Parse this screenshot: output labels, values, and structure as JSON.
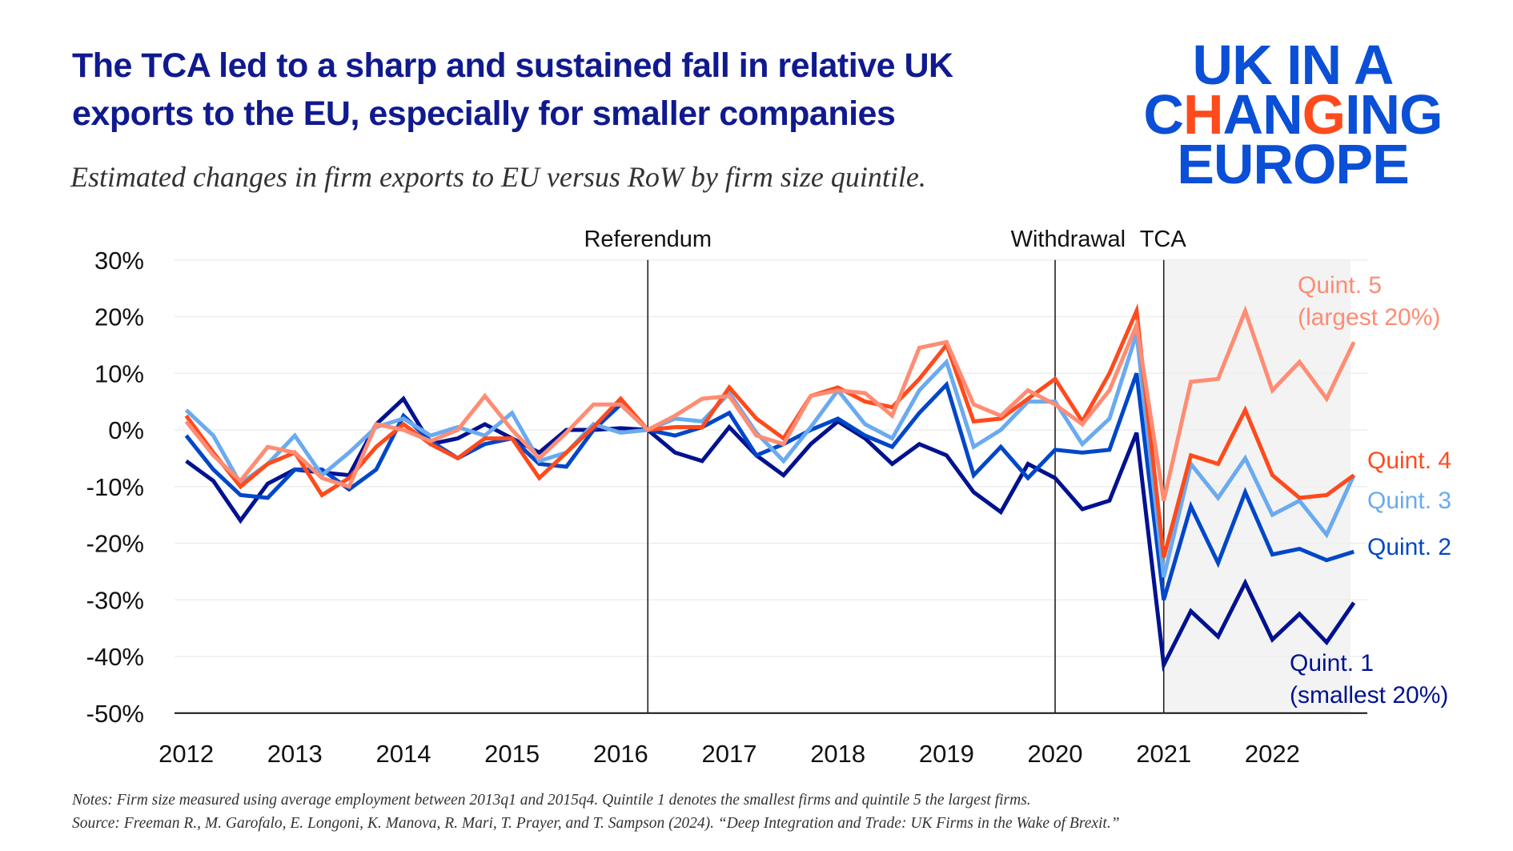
{
  "header": {
    "title_line1": "The TCA led to a sharp and sustained fall in relative UK",
    "title_line2": "exports to the EU, especially for smaller companies",
    "subtitle": "Estimated changes in firm exports to EU versus RoW by firm size quintile."
  },
  "logo": {
    "line1": "UK IN A",
    "line2": "CHANGING",
    "line3": "EUROPE",
    "brand_color": "#0a4fd6",
    "accent_color": "#ff4a1c"
  },
  "notes": {
    "line1": "Notes: Firm size measured using average employment between 2013q1 and 2015q4. Quintile 1 denotes the smallest firms and quintile 5 the largest firms.",
    "line2": "Source: Freeman R., M. Garofalo, E. Longoni, K. Manova, R. Mari, T. Prayer, and T. Sampson (2024). “Deep Integration and Trade: UK Firms in the Wake of Brexit.”"
  },
  "chart_data": {
    "type": "line",
    "x_start": "2012q1",
    "x_end": "2022q4",
    "frequency": "quarterly",
    "ylim": [
      -50,
      30
    ],
    "y_ticks": [
      30,
      20,
      10,
      0,
      -10,
      -20,
      -30,
      -40,
      -50
    ],
    "y_tick_labels": [
      "30%",
      "20%",
      "10%",
      "0%",
      "-10%",
      "-20%",
      "-30%",
      "-40%",
      "-50%"
    ],
    "x_tick_labels": [
      "2012",
      "2013",
      "2014",
      "2015",
      "2016",
      "2017",
      "2018",
      "2019",
      "2020",
      "2021",
      "2022"
    ],
    "grid": "horizontal",
    "events": [
      {
        "label": "Referendum",
        "x": "2016q2"
      },
      {
        "label": "Withdrawal",
        "x": "2020q1"
      },
      {
        "label": "TCA",
        "x": "2021q1"
      }
    ],
    "shaded_from": "2021q1",
    "series": [
      {
        "name": "Quint. 1",
        "sublabel": "(smallest 20%)",
        "color": "#00128f",
        "values": [
          -5.5,
          -9,
          -16,
          -9.5,
          -7,
          -7.5,
          -8,
          1,
          5.5,
          -2.5,
          -1.5,
          1,
          -1.5,
          -4,
          0,
          0,
          0.3,
          0,
          -4,
          -5.5,
          0.5,
          -4.5,
          -8,
          -2.5,
          1.5,
          -1.5,
          -6,
          -2.5,
          -4.5,
          -11,
          -14.5,
          -6,
          -8.5,
          -14,
          -12.5,
          -0.5,
          -41.5,
          -32,
          -36.5,
          -27,
          -37,
          -32.5,
          -37.5,
          -30.5
        ]
      },
      {
        "name": "Quint. 2",
        "sublabel": "",
        "color": "#0047c8",
        "values": [
          -1,
          -7,
          -11.5,
          -12,
          -7,
          -7,
          -10.5,
          -7,
          2.5,
          -2,
          -5,
          -2.5,
          -1.5,
          -6,
          -6.5,
          0,
          4.5,
          0,
          -1,
          0.5,
          3,
          -4.5,
          -2.5,
          0,
          2,
          -1,
          -3,
          3,
          8,
          -8,
          -3,
          -8.5,
          -3.5,
          -4,
          -3.5,
          10,
          -30,
          -13.5,
          -23.5,
          -11,
          -22,
          -21,
          -23,
          -21.5
        ]
      },
      {
        "name": "Quint. 3",
        "sublabel": "",
        "color": "#6aaaf0",
        "values": [
          3.5,
          -1,
          -9.5,
          -6,
          -1,
          -8,
          -4,
          0.5,
          2,
          -1,
          0.5,
          -1,
          3,
          -5.5,
          -4,
          1,
          -0.5,
          0,
          2,
          1.5,
          6.5,
          -0.5,
          -5.5,
          0.5,
          7,
          1,
          -1.5,
          7,
          12,
          -3,
          0,
          5,
          5,
          -2.5,
          2,
          17,
          -26,
          -6,
          -12,
          -5,
          -15,
          -12.5,
          -18.5,
          -8
        ]
      },
      {
        "name": "Quint. 4",
        "sublabel": "",
        "color": "#ff4a1c",
        "values": [
          2.5,
          -4,
          -10,
          -6,
          -4,
          -11.5,
          -8.5,
          -3,
          1,
          -2.5,
          -5,
          -1.5,
          -1.5,
          -8.5,
          -4,
          0.5,
          5.5,
          0,
          0.5,
          0.5,
          7.5,
          2,
          -1.5,
          6,
          7.5,
          5,
          4,
          9,
          15,
          1.5,
          2,
          5.5,
          9,
          1.5,
          10,
          21,
          -22.5,
          -4.5,
          -6,
          3.5,
          -8,
          -12,
          -11.5,
          -8
        ]
      },
      {
        "name": "Quint. 5",
        "sublabel": "(largest 20%)",
        "color": "#ff8c73",
        "values": [
          1.5,
          -4.5,
          -9,
          -3,
          -4,
          -8.5,
          -10,
          1,
          0,
          -2,
          0,
          6,
          0,
          -5,
          -0.5,
          4.5,
          4.5,
          0,
          2.5,
          5.5,
          6,
          -1,
          -2.5,
          6,
          7,
          6.5,
          2.5,
          14.5,
          15.5,
          4.5,
          2.5,
          7,
          4.5,
          1,
          7,
          18.5,
          -12.5,
          8.5,
          9,
          21,
          7,
          12,
          5.5,
          15.5
        ]
      }
    ]
  }
}
